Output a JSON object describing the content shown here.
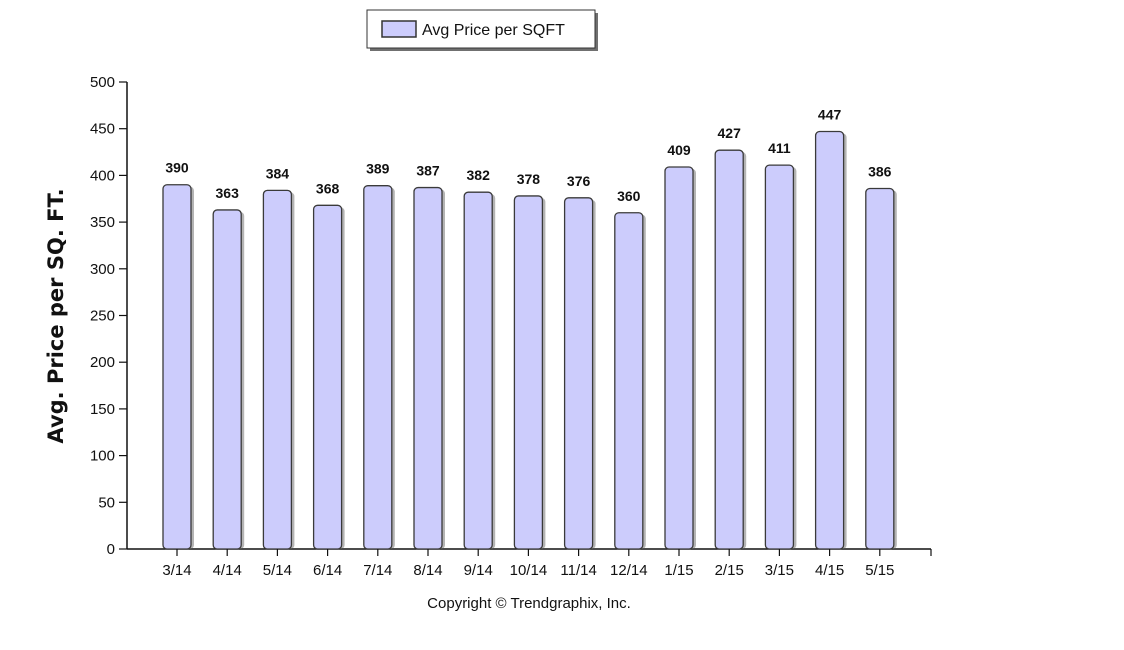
{
  "legend": {
    "label": "Avg Price per SQFT"
  },
  "footer": {
    "copyright": "Copyright © Trendgraphix, Inc."
  },
  "colors": {
    "bar_fill": "#ccccfc",
    "bar_stroke": "#3a3a3a",
    "shadow": "#777777"
  },
  "chart_data": {
    "type": "bar",
    "categories": [
      "3/14",
      "4/14",
      "5/14",
      "6/14",
      "7/14",
      "8/14",
      "9/14",
      "10/14",
      "11/14",
      "12/14",
      "1/15",
      "2/15",
      "3/15",
      "4/15",
      "5/15"
    ],
    "series": [
      {
        "name": "Avg Price per SQFT",
        "values": [
          390,
          363,
          384,
          368,
          389,
          387,
          382,
          378,
          376,
          360,
          409,
          427,
          411,
          447,
          386
        ]
      }
    ],
    "ylabel": "Avg. Price per SQ. FT.",
    "xlabel": "",
    "ylim": [
      0,
      500
    ],
    "yticks": [
      0,
      50,
      100,
      150,
      200,
      250,
      300,
      350,
      400,
      450,
      500
    ],
    "grid": false,
    "legend_position": "top"
  }
}
